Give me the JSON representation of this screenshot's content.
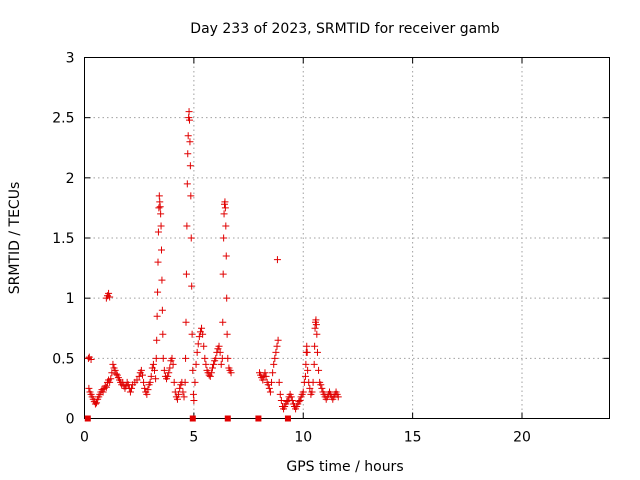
{
  "chart_data": {
    "type": "scatter",
    "title": "Day 233 of 2023, SRMTID for receiver gamb",
    "xlabel": "GPS time / hours",
    "ylabel": "SRMTID / TECUs",
    "xlim": [
      0,
      24
    ],
    "ylim": [
      0,
      3
    ],
    "x_ticks": [
      0,
      5,
      10,
      15,
      20
    ],
    "y_ticks": [
      0,
      0.5,
      1,
      1.5,
      2,
      2.5,
      3
    ],
    "x_tick_labels": [
      "0",
      "5",
      "10",
      "15",
      "20"
    ],
    "y_tick_labels": [
      "0",
      "0.5",
      "1",
      "1.5",
      "2",
      "2.5",
      "3"
    ],
    "grid": true,
    "marker": "plus",
    "color": "#e00000",
    "points": [
      [
        0.18,
        0.5
      ],
      [
        0.22,
        0.51
      ],
      [
        0.3,
        0.49
      ],
      [
        0.2,
        0.25
      ],
      [
        0.25,
        0.22
      ],
      [
        0.3,
        0.2
      ],
      [
        0.35,
        0.18
      ],
      [
        0.4,
        0.16
      ],
      [
        0.45,
        0.14
      ],
      [
        0.5,
        0.12
      ],
      [
        0.55,
        0.13
      ],
      [
        0.6,
        0.16
      ],
      [
        0.65,
        0.18
      ],
      [
        0.7,
        0.2
      ],
      [
        0.75,
        0.22
      ],
      [
        0.8,
        0.24
      ],
      [
        0.85,
        0.22
      ],
      [
        0.9,
        0.25
      ],
      [
        0.95,
        0.27
      ],
      [
        1.0,
        0.26
      ],
      [
        1.05,
        0.3
      ],
      [
        1.1,
        0.32
      ],
      [
        1.0,
        1.0
      ],
      [
        1.05,
        1.02
      ],
      [
        1.1,
        1.04
      ],
      [
        1.15,
        1.01
      ],
      [
        1.15,
        0.3
      ],
      [
        1.2,
        0.33
      ],
      [
        1.25,
        0.38
      ],
      [
        1.3,
        0.45
      ],
      [
        1.35,
        0.42
      ],
      [
        1.4,
        0.4
      ],
      [
        1.45,
        0.37
      ],
      [
        1.5,
        0.36
      ],
      [
        1.55,
        0.34
      ],
      [
        1.6,
        0.32
      ],
      [
        1.65,
        0.3
      ],
      [
        1.7,
        0.28
      ],
      [
        1.75,
        0.3
      ],
      [
        1.8,
        0.27
      ],
      [
        1.85,
        0.25
      ],
      [
        1.9,
        0.27
      ],
      [
        1.95,
        0.3
      ],
      [
        2.0,
        0.28
      ],
      [
        2.05,
        0.25
      ],
      [
        2.1,
        0.22
      ],
      [
        2.15,
        0.25
      ],
      [
        2.2,
        0.28
      ],
      [
        2.3,
        0.3
      ],
      [
        2.4,
        0.32
      ],
      [
        2.5,
        0.35
      ],
      [
        2.55,
        0.38
      ],
      [
        2.6,
        0.4
      ],
      [
        2.65,
        0.36
      ],
      [
        2.7,
        0.3
      ],
      [
        2.75,
        0.25
      ],
      [
        2.8,
        0.22
      ],
      [
        2.85,
        0.2
      ],
      [
        2.9,
        0.24
      ],
      [
        2.95,
        0.28
      ],
      [
        3.0,
        0.3
      ],
      [
        3.05,
        0.35
      ],
      [
        3.1,
        0.42
      ],
      [
        3.15,
        0.45
      ],
      [
        3.2,
        0.4
      ],
      [
        3.25,
        0.33
      ],
      [
        3.28,
        0.5
      ],
      [
        3.3,
        0.65
      ],
      [
        3.32,
        0.85
      ],
      [
        3.34,
        1.05
      ],
      [
        3.36,
        1.3
      ],
      [
        3.38,
        1.55
      ],
      [
        3.4,
        1.75
      ],
      [
        3.42,
        1.85
      ],
      [
        3.44,
        1.8
      ],
      [
        3.46,
        1.76
      ],
      [
        3.48,
        1.7
      ],
      [
        3.5,
        1.6
      ],
      [
        3.52,
        1.4
      ],
      [
        3.54,
        1.15
      ],
      [
        3.56,
        0.9
      ],
      [
        3.58,
        0.7
      ],
      [
        3.6,
        0.5
      ],
      [
        3.65,
        0.4
      ],
      [
        3.7,
        0.35
      ],
      [
        3.75,
        0.33
      ],
      [
        3.8,
        0.35
      ],
      [
        3.85,
        0.38
      ],
      [
        3.9,
        0.42
      ],
      [
        3.95,
        0.48
      ],
      [
        4.0,
        0.5
      ],
      [
        4.05,
        0.45
      ],
      [
        4.1,
        0.3
      ],
      [
        4.15,
        0.22
      ],
      [
        4.2,
        0.18
      ],
      [
        4.25,
        0.16
      ],
      [
        4.3,
        0.2
      ],
      [
        4.35,
        0.25
      ],
      [
        4.4,
        0.28
      ],
      [
        4.45,
        0.3
      ],
      [
        4.5,
        0.22
      ],
      [
        4.55,
        0.18
      ],
      [
        4.6,
        0.3
      ],
      [
        4.62,
        0.5
      ],
      [
        4.64,
        0.8
      ],
      [
        4.66,
        1.2
      ],
      [
        4.68,
        1.6
      ],
      [
        4.7,
        1.95
      ],
      [
        4.72,
        2.2
      ],
      [
        4.74,
        2.35
      ],
      [
        4.76,
        2.5
      ],
      [
        4.78,
        2.55
      ],
      [
        4.8,
        2.48
      ],
      [
        4.82,
        2.3
      ],
      [
        4.84,
        2.1
      ],
      [
        4.86,
        1.85
      ],
      [
        4.88,
        1.5
      ],
      [
        4.9,
        1.1
      ],
      [
        4.92,
        0.7
      ],
      [
        4.95,
        0.4
      ],
      [
        4.98,
        0.2
      ],
      [
        5.0,
        0.15
      ],
      [
        5.05,
        0.3
      ],
      [
        5.1,
        0.45
      ],
      [
        5.15,
        0.55
      ],
      [
        5.2,
        0.62
      ],
      [
        5.25,
        0.68
      ],
      [
        5.3,
        0.72
      ],
      [
        5.35,
        0.75
      ],
      [
        5.4,
        0.7
      ],
      [
        5.45,
        0.6
      ],
      [
        5.5,
        0.5
      ],
      [
        5.55,
        0.45
      ],
      [
        5.6,
        0.4
      ],
      [
        5.65,
        0.38
      ],
      [
        5.7,
        0.36
      ],
      [
        5.75,
        0.35
      ],
      [
        5.8,
        0.38
      ],
      [
        5.85,
        0.42
      ],
      [
        5.9,
        0.45
      ],
      [
        5.95,
        0.48
      ],
      [
        6.0,
        0.5
      ],
      [
        6.05,
        0.55
      ],
      [
        6.1,
        0.58
      ],
      [
        6.15,
        0.6
      ],
      [
        6.2,
        0.55
      ],
      [
        6.25,
        0.45
      ],
      [
        6.3,
        0.5
      ],
      [
        6.32,
        0.8
      ],
      [
        6.34,
        1.2
      ],
      [
        6.36,
        1.5
      ],
      [
        6.38,
        1.7
      ],
      [
        6.4,
        1.78
      ],
      [
        6.42,
        1.8
      ],
      [
        6.44,
        1.75
      ],
      [
        6.46,
        1.6
      ],
      [
        6.48,
        1.35
      ],
      [
        6.5,
        1.0
      ],
      [
        6.52,
        0.7
      ],
      [
        6.55,
        0.5
      ],
      [
        6.6,
        0.42
      ],
      [
        6.65,
        0.4
      ],
      [
        6.7,
        0.38
      ],
      [
        8.0,
        0.38
      ],
      [
        8.05,
        0.36
      ],
      [
        8.1,
        0.34
      ],
      [
        8.15,
        0.32
      ],
      [
        8.2,
        0.35
      ],
      [
        8.25,
        0.38
      ],
      [
        8.3,
        0.35
      ],
      [
        8.35,
        0.3
      ],
      [
        8.4,
        0.28
      ],
      [
        8.45,
        0.25
      ],
      [
        8.5,
        0.22
      ],
      [
        8.55,
        0.3
      ],
      [
        8.6,
        0.38
      ],
      [
        8.65,
        0.45
      ],
      [
        8.7,
        0.5
      ],
      [
        8.75,
        0.55
      ],
      [
        8.8,
        0.6
      ],
      [
        8.85,
        0.65
      ],
      [
        8.82,
        1.32
      ],
      [
        8.9,
        0.3
      ],
      [
        8.95,
        0.2
      ],
      [
        9.0,
        0.15
      ],
      [
        9.05,
        0.1
      ],
      [
        9.1,
        0.08
      ],
      [
        9.15,
        0.1
      ],
      [
        9.2,
        0.12
      ],
      [
        9.25,
        0.14
      ],
      [
        9.3,
        0.15
      ],
      [
        9.35,
        0.18
      ],
      [
        9.4,
        0.2
      ],
      [
        9.45,
        0.18
      ],
      [
        9.5,
        0.15
      ],
      [
        9.55,
        0.12
      ],
      [
        9.6,
        0.1
      ],
      [
        9.65,
        0.08
      ],
      [
        9.7,
        0.1
      ],
      [
        9.75,
        0.12
      ],
      [
        9.8,
        0.14
      ],
      [
        9.85,
        0.15
      ],
      [
        9.9,
        0.18
      ],
      [
        9.95,
        0.2
      ],
      [
        10.0,
        0.22
      ],
      [
        10.05,
        0.3
      ],
      [
        10.1,
        0.35
      ],
      [
        10.12,
        0.45
      ],
      [
        10.14,
        0.55
      ],
      [
        10.16,
        0.6
      ],
      [
        10.18,
        0.55
      ],
      [
        10.2,
        0.4
      ],
      [
        10.25,
        0.3
      ],
      [
        10.3,
        0.25
      ],
      [
        10.35,
        0.2
      ],
      [
        10.4,
        0.22
      ],
      [
        10.45,
        0.3
      ],
      [
        10.5,
        0.45
      ],
      [
        10.52,
        0.6
      ],
      [
        10.54,
        0.75
      ],
      [
        10.56,
        0.8
      ],
      [
        10.58,
        0.82
      ],
      [
        10.6,
        0.78
      ],
      [
        10.62,
        0.7
      ],
      [
        10.65,
        0.55
      ],
      [
        10.7,
        0.4
      ],
      [
        10.75,
        0.3
      ],
      [
        10.8,
        0.28
      ],
      [
        10.85,
        0.25
      ],
      [
        10.9,
        0.22
      ],
      [
        10.95,
        0.2
      ],
      [
        11.0,
        0.18
      ],
      [
        11.05,
        0.16
      ],
      [
        11.1,
        0.18
      ],
      [
        11.15,
        0.2
      ],
      [
        11.2,
        0.22
      ],
      [
        11.25,
        0.2
      ],
      [
        11.3,
        0.18
      ],
      [
        11.35,
        0.16
      ],
      [
        11.4,
        0.18
      ],
      [
        11.45,
        0.2
      ],
      [
        11.5,
        0.22
      ],
      [
        11.55,
        0.2
      ],
      [
        11.6,
        0.18
      ]
    ],
    "zero_markers_x": [
      0.15,
      4.95,
      6.55,
      7.95,
      9.3
    ]
  }
}
